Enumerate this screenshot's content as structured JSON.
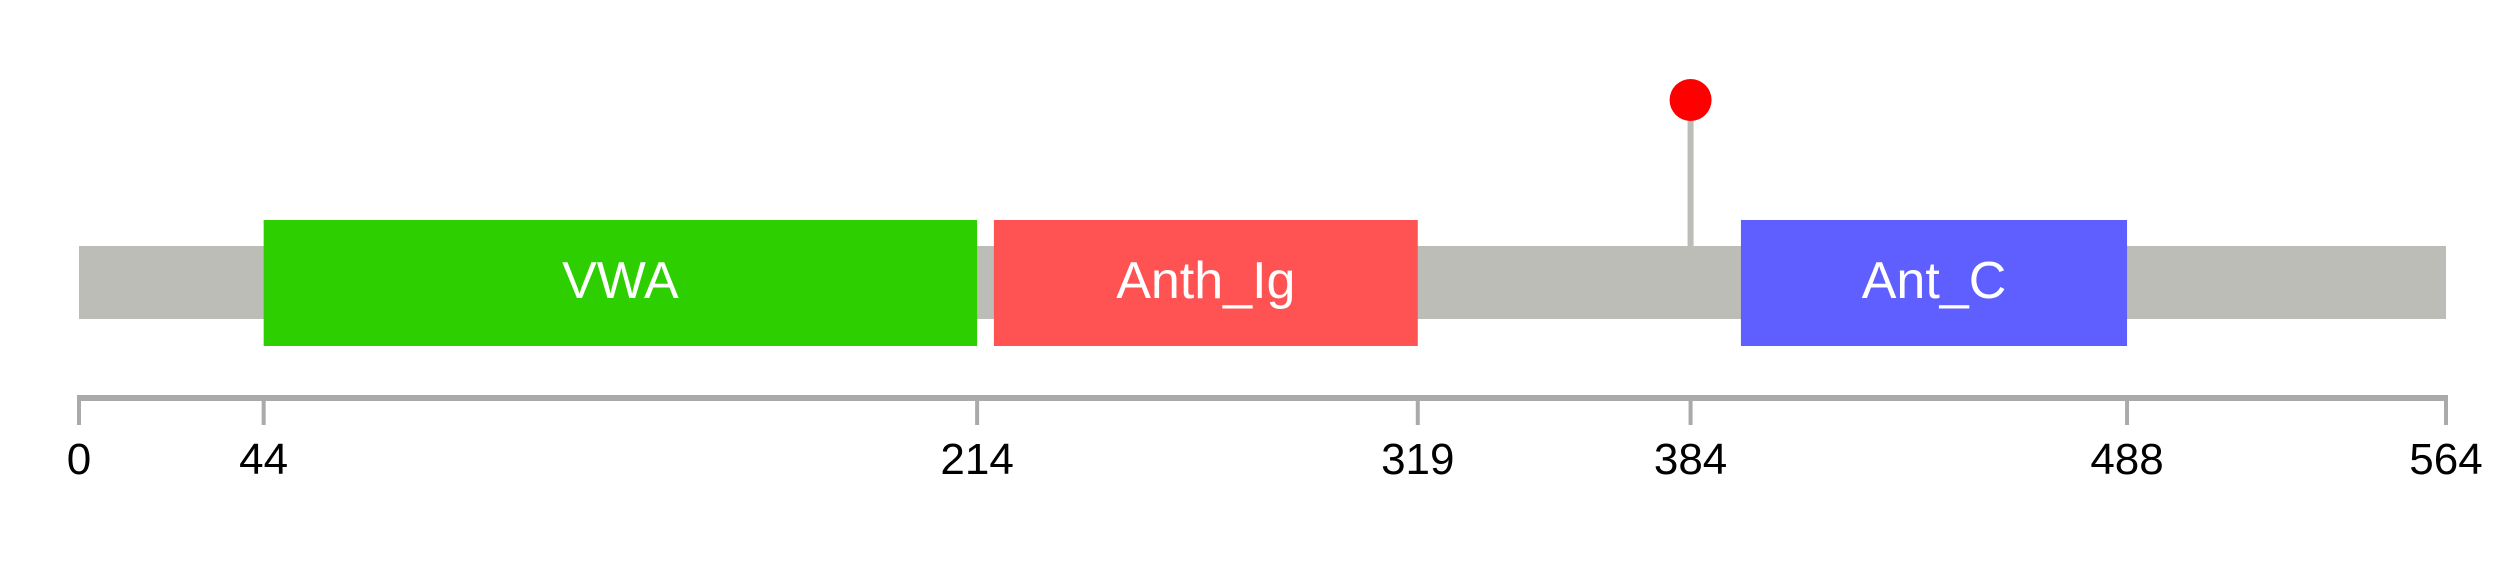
{
  "protein_length": 564,
  "colors": {
    "backbone": "#bbbdb6",
    "axis": "#aaaaaa",
    "stem": "#bbbdb6",
    "mutation": "#ff0000",
    "label_text": "#ffffff",
    "tick_text": "#000000"
  },
  "domains": [
    {
      "name": "VWA",
      "start": 44,
      "end": 214,
      "color": "#2ecf00"
    },
    {
      "name": "Anth_Ig",
      "start": 218,
      "end": 319,
      "color": "#ff5353"
    },
    {
      "name": "Ant_C",
      "start": 396,
      "end": 488,
      "color": "#5f5fff"
    }
  ],
  "mutations": [
    {
      "position": 384
    }
  ],
  "axis": {
    "ticks": [
      "0",
      "44",
      "214",
      "319",
      "384",
      "488",
      "564"
    ]
  }
}
